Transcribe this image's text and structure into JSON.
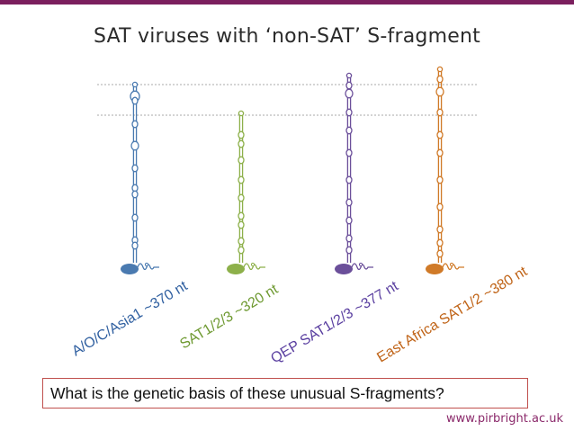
{
  "colors": {
    "top_bar": "#7b1f5e",
    "footer_url": "#8b2a6b",
    "question_border": "#c0504d",
    "guide_line": "#aaaaaa"
  },
  "title": "SAT viruses with ‘non-SAT’ S-fragment",
  "structures": [
    {
      "label": "A/O/C/Asia1  ~370 nt",
      "color": "#4a7ab0",
      "label_color": "#2f5fa0"
    },
    {
      "label": "SAT1/2/3  ~320 nt",
      "color": "#8db04a",
      "label_color": "#6f9a32"
    },
    {
      "label": "QEP SAT1/2/3 ~377 nt",
      "color": "#6b4f9a",
      "label_color": "#5a3fa0"
    },
    {
      "label": "East Africa SAT1/2 ~380 nt",
      "color": "#d07a28",
      "label_color": "#c06418"
    }
  ],
  "question": "What is the genetic basis of these unusual S-fragments?",
  "footer_url": "www.pirbright.ac.uk"
}
